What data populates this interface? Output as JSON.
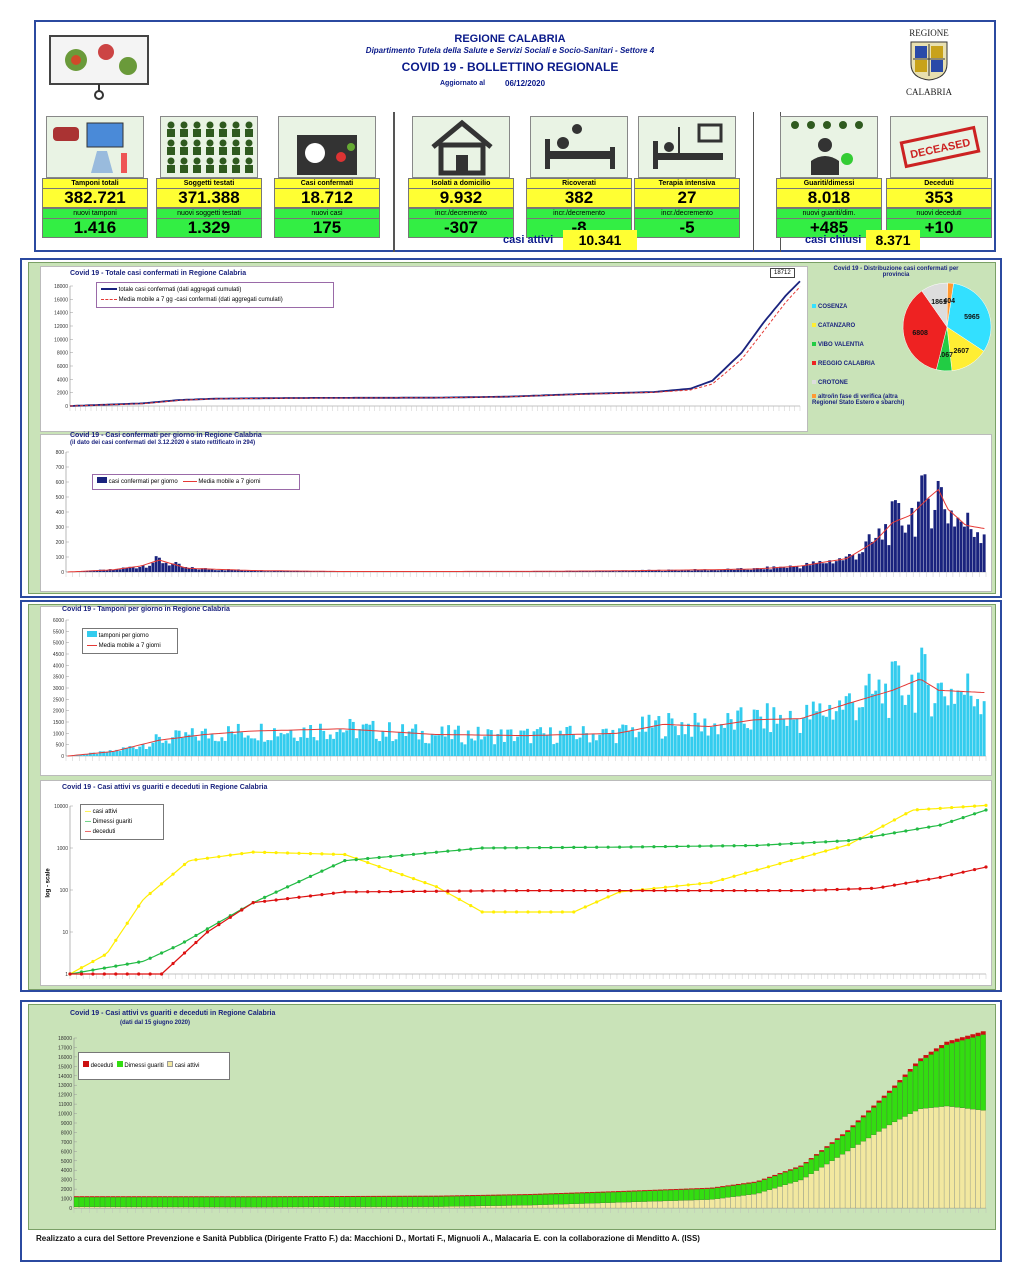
{
  "header": {
    "region": "REGIONE CALABRIA",
    "department": "Dipartimento Tutela della Salute e Servizi Sociali e Socio-Sanitari - Settore 4",
    "title": "COVID 19 - BOLLETTINO REGIONALE",
    "updated_label": "Aggiornato al",
    "updated_date": "06/12/2020",
    "logo_top": "REGIONE",
    "logo_bottom": "CALABRIA"
  },
  "tiles": [
    {
      "label": "Tamponi totali",
      "value": "382.721",
      "sublabel": "nuovi tamponi",
      "subvalue": "1.416",
      "icon": "lab-test-icon"
    },
    {
      "label": "Soggetti testati",
      "value": "371.388",
      "sublabel": "nuovi soggetti testati",
      "subvalue": "1.329",
      "icon": "people-grid-icon"
    },
    {
      "label": "Casi confermati",
      "value": "18.712",
      "sublabel": "nuovi casi",
      "subvalue": "175",
      "icon": "confirmed-case-icon"
    },
    {
      "label": "Isolati a domicilio",
      "value": "9.932",
      "sublabel": "incr./decremento",
      "subvalue": "-307",
      "icon": "house-icon"
    },
    {
      "label": "Ricoverati",
      "value": "382",
      "sublabel": "incr./decremento",
      "subvalue": "-8",
      "icon": "hospital-bed-icon"
    },
    {
      "label": "Terapia intensiva",
      "value": "27",
      "sublabel": "incr./decremento",
      "subvalue": "-5",
      "icon": "intensive-care-icon"
    },
    {
      "label": "Guariti/dimessi",
      "value": "8.018",
      "sublabel": "nuovi guariti/dim.",
      "subvalue": "+485",
      "icon": "recovered-icon"
    },
    {
      "label": "Deceduti",
      "value": "353",
      "sublabel": "nuovi deceduti",
      "subvalue": "+10",
      "icon": "deceased-stamp-icon"
    }
  ],
  "stamp_text": "DECEASED",
  "summary": {
    "active_label": "casi attivi",
    "active_value": "10.341",
    "closed_label": "casi chiusi",
    "closed_value": "8.371"
  },
  "footer": "Realizzato a cura del Settore Prevenzione e Sanità Pubblica (Dirigente Fratto F.) da:  Macchioni D., Mortati F., Mignuoli A., Malacaria E. con la collaborazione di Menditto A. (ISS)",
  "chart_data": [
    {
      "id": "total_cases",
      "type": "line",
      "title": "Covid 19 - Totale casi confermati in Regione Calabria",
      "ylim": [
        0,
        18000
      ],
      "yticks": [
        0,
        2000,
        4000,
        6000,
        8000,
        10000,
        12000,
        14000,
        16000,
        18000
      ],
      "last_value_label": "18712",
      "series": [
        {
          "name": "totale casi confermati (dati aggregati cumulati)",
          "color": "#1a237e",
          "x": [
            0,
            0.1,
            0.15,
            0.2,
            0.3,
            0.5,
            0.6,
            0.7,
            0.8,
            0.85,
            0.88,
            0.92,
            0.95,
            0.98,
            1.0
          ],
          "values": [
            0,
            400,
            900,
            1100,
            1200,
            1250,
            1400,
            1800,
            2100,
            2600,
            3800,
            8000,
            12500,
            16500,
            18712
          ]
        },
        {
          "name": "Media mobile a 7 gg -casi confermati (dati aggregati cumulati)",
          "color": "#e53935",
          "x": [
            0,
            0.1,
            0.15,
            0.2,
            0.3,
            0.5,
            0.6,
            0.7,
            0.8,
            0.85,
            0.88,
            0.92,
            0.95,
            0.98,
            1.0
          ],
          "values": [
            0,
            350,
            850,
            1080,
            1180,
            1240,
            1380,
            1750,
            2050,
            2400,
            3300,
            7000,
            11200,
            15500,
            17900
          ]
        }
      ]
    },
    {
      "id": "provinces",
      "type": "pie",
      "title": "Covid 19 - Distribuzione casi confermati per provincia",
      "legend": [
        "COSENZA",
        "CATANZARO",
        "VIBO VALENTIA",
        "REGGIO CALABRIA",
        "CROTONE",
        "altro/in fase di verifica (altra Regione/ Stato Estero e sbarchi)"
      ],
      "labels": [
        "COSENZA",
        "CATANZARO",
        "VIBO VALENTIA",
        "REGGIO CALABRIA",
        "CROTONE",
        "altro/in fase di verifica"
      ],
      "values": [
        5965,
        2607,
        1067,
        6808,
        1861,
        404
      ],
      "colors": [
        "#33e0ff",
        "#ffee33",
        "#22cc44",
        "#ee2222",
        "#dddddd",
        "#ff9933"
      ]
    },
    {
      "id": "daily_cases",
      "type": "bar",
      "title": "Covid 19 - Casi confermati per giorno in Regione Calabria",
      "subtitle": "(il dato dei casi confermati del 3.12.2020 è stato rettificato in 294)",
      "ylim": [
        0,
        800
      ],
      "yticks": [
        0,
        100,
        200,
        300,
        400,
        500,
        600,
        700,
        800
      ],
      "series": [
        {
          "name": "casi confermati per giorno",
          "color": "#1a237e"
        },
        {
          "name": "Media mobile a 7 giorni",
          "color": "#e53935"
        }
      ],
      "profile_x": [
        0,
        0.05,
        0.08,
        0.1,
        0.13,
        0.2,
        0.3,
        0.5,
        0.6,
        0.7,
        0.75,
        0.8,
        0.85,
        0.88,
        0.9,
        0.92,
        0.94,
        0.95,
        0.96,
        0.98,
        1.0
      ],
      "profile_y": [
        0,
        15,
        40,
        80,
        25,
        10,
        3,
        4,
        8,
        15,
        20,
        40,
        90,
        200,
        330,
        380,
        500,
        550,
        420,
        310,
        290
      ]
    },
    {
      "id": "daily_tests",
      "type": "bar",
      "title": "Covid 19 - Tamponi per giorno in Regione Calabria",
      "ylim": [
        0,
        6000
      ],
      "yticks": [
        0,
        500,
        1000,
        1500,
        2000,
        2500,
        3000,
        3500,
        4000,
        4500,
        5000,
        5500,
        6000
      ],
      "series": [
        {
          "name": "tamponi per giorno",
          "color": "#33ccee"
        },
        {
          "name": "Media mobile a 7 giorni",
          "color": "#e53935"
        }
      ],
      "profile_x": [
        0,
        0.05,
        0.1,
        0.15,
        0.2,
        0.3,
        0.4,
        0.5,
        0.6,
        0.65,
        0.7,
        0.75,
        0.8,
        0.85,
        0.9,
        0.93,
        0.95,
        1.0
      ],
      "profile_y": [
        0,
        200,
        700,
        950,
        1100,
        1200,
        950,
        900,
        1000,
        1400,
        1300,
        1600,
        1650,
        2300,
        2900,
        3400,
        2900,
        2800
      ]
    },
    {
      "id": "log_chart",
      "type": "line",
      "title": "Covid 19 - Casi attivi vs guariti e deceduti in Regione Calabria",
      "ylabel": "log - scale",
      "ylim": [
        1,
        10000
      ],
      "yticks": [
        1,
        10,
        100,
        1000,
        10000
      ],
      "series": [
        {
          "name": "casi attivi",
          "color": "#ffee00",
          "x": [
            0,
            0.04,
            0.08,
            0.13,
            0.2,
            0.3,
            0.4,
            0.45,
            0.55,
            0.6,
            0.7,
            0.8,
            0.85,
            0.92,
            1.0
          ],
          "values": [
            1,
            3,
            60,
            500,
            800,
            700,
            120,
            30,
            30,
            90,
            150,
            600,
            1200,
            8000,
            10341
          ]
        },
        {
          "name": "Dimessi guariti",
          "color": "#22bb44",
          "x": [
            0,
            0.08,
            0.12,
            0.2,
            0.3,
            0.45,
            0.6,
            0.75,
            0.85,
            0.95,
            1.0
          ],
          "values": [
            1,
            2,
            5,
            50,
            500,
            1000,
            1050,
            1150,
            1500,
            3500,
            8018
          ]
        },
        {
          "name": "deceduti",
          "color": "#dd1111",
          "x": [
            0,
            0.1,
            0.15,
            0.2,
            0.3,
            0.5,
            0.8,
            0.88,
            0.95,
            1.0
          ],
          "values": [
            1,
            1,
            10,
            50,
            90,
            97,
            97,
            110,
            200,
            353
          ]
        }
      ]
    },
    {
      "id": "stacked_since_june",
      "type": "area",
      "title": "Covid 19 - Casi attivi vs guariti e deceduti in Regione Calabria",
      "subtitle": "(dati dal 15 giugno 2020)",
      "ylim": [
        0,
        18000
      ],
      "yticks": [
        0,
        1000,
        2000,
        3000,
        4000,
        5000,
        6000,
        7000,
        8000,
        9000,
        10000,
        11000,
        12000,
        13000,
        14000,
        15000,
        16000,
        17000,
        18000
      ],
      "series": [
        {
          "name": "deceduti",
          "color": "#cc1111"
        },
        {
          "name": "Dimessi guariti",
          "color": "#33dd11"
        },
        {
          "name": "casi attivi",
          "color": "#f2e8a0"
        }
      ],
      "x": [
        0,
        0.2,
        0.4,
        0.5,
        0.6,
        0.7,
        0.75,
        0.8,
        0.85,
        0.9,
        0.93,
        0.96,
        1.0
      ],
      "active": [
        120,
        100,
        150,
        300,
        600,
        900,
        1500,
        3000,
        6000,
        9000,
        10500,
        10800,
        10341
      ],
      "recovered": [
        1030,
        1040,
        1060,
        1080,
        1100,
        1150,
        1200,
        1400,
        2000,
        3500,
        5000,
        6500,
        8018
      ],
      "deceased": [
        97,
        97,
        97,
        98,
        98,
        100,
        110,
        130,
        180,
        230,
        280,
        320,
        353
      ]
    }
  ]
}
